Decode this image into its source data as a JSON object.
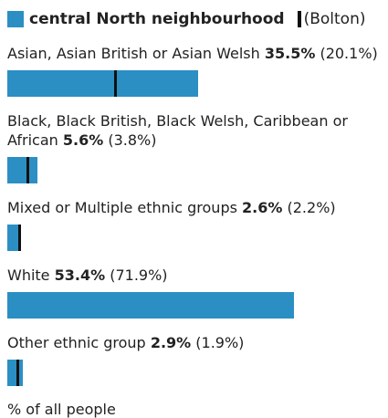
{
  "chart_data": {
    "type": "bar",
    "categories": [
      "Asian, Asian British or Asian Welsh",
      "Black, Black British, Black Welsh, Caribbean or African",
      "Mixed or Multiple ethnic groups",
      "White",
      "Other ethnic group"
    ],
    "series": [
      {
        "name": "central North neighbourhood",
        "color": "#2b8fc4",
        "values": [
          35.5,
          5.6,
          2.6,
          53.4,
          2.9
        ],
        "value_labels": [
          "35.5%",
          "5.6%",
          "2.6%",
          "53.4%",
          "2.9%"
        ]
      },
      {
        "name": "(Bolton)",
        "color": "#111111",
        "values": [
          20.1,
          3.8,
          2.2,
          71.9,
          1.9
        ],
        "value_labels": [
          "(20.1%)",
          "(3.8%)",
          "(2.2%)",
          "(71.9%)",
          "(1.9%)"
        ]
      }
    ],
    "x_label": "% of all people"
  }
}
